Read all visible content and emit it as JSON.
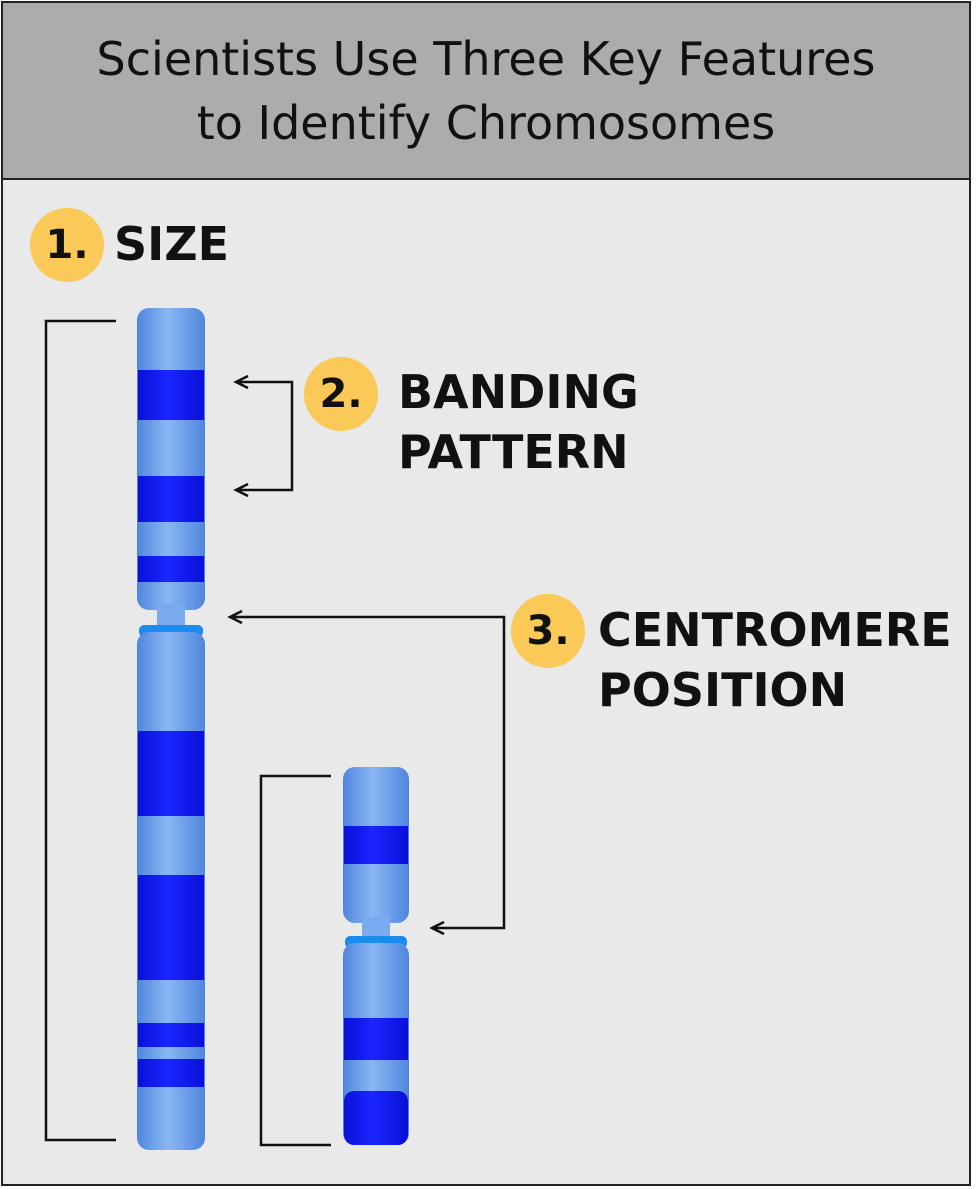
{
  "title": {
    "line1": "Scientists Use Three Key Features",
    "line2": "to Identify Chromosomes"
  },
  "features": [
    {
      "number": "1.",
      "lines": [
        "SIZE"
      ]
    },
    {
      "number": "2.",
      "lines": [
        "BANDING",
        "PATTERN"
      ]
    },
    {
      "number": "3.",
      "lines": [
        "CENTROMERE",
        "POSITION"
      ]
    }
  ],
  "colors": {
    "header_bg": "#acacac",
    "panel_bg": "#e9e9e9",
    "badge": "#fac957",
    "chromosome_light": "#6ea0ea",
    "band_dark": "#0a14f0",
    "centromere": "#1a8cf0",
    "lines": "#111111"
  }
}
